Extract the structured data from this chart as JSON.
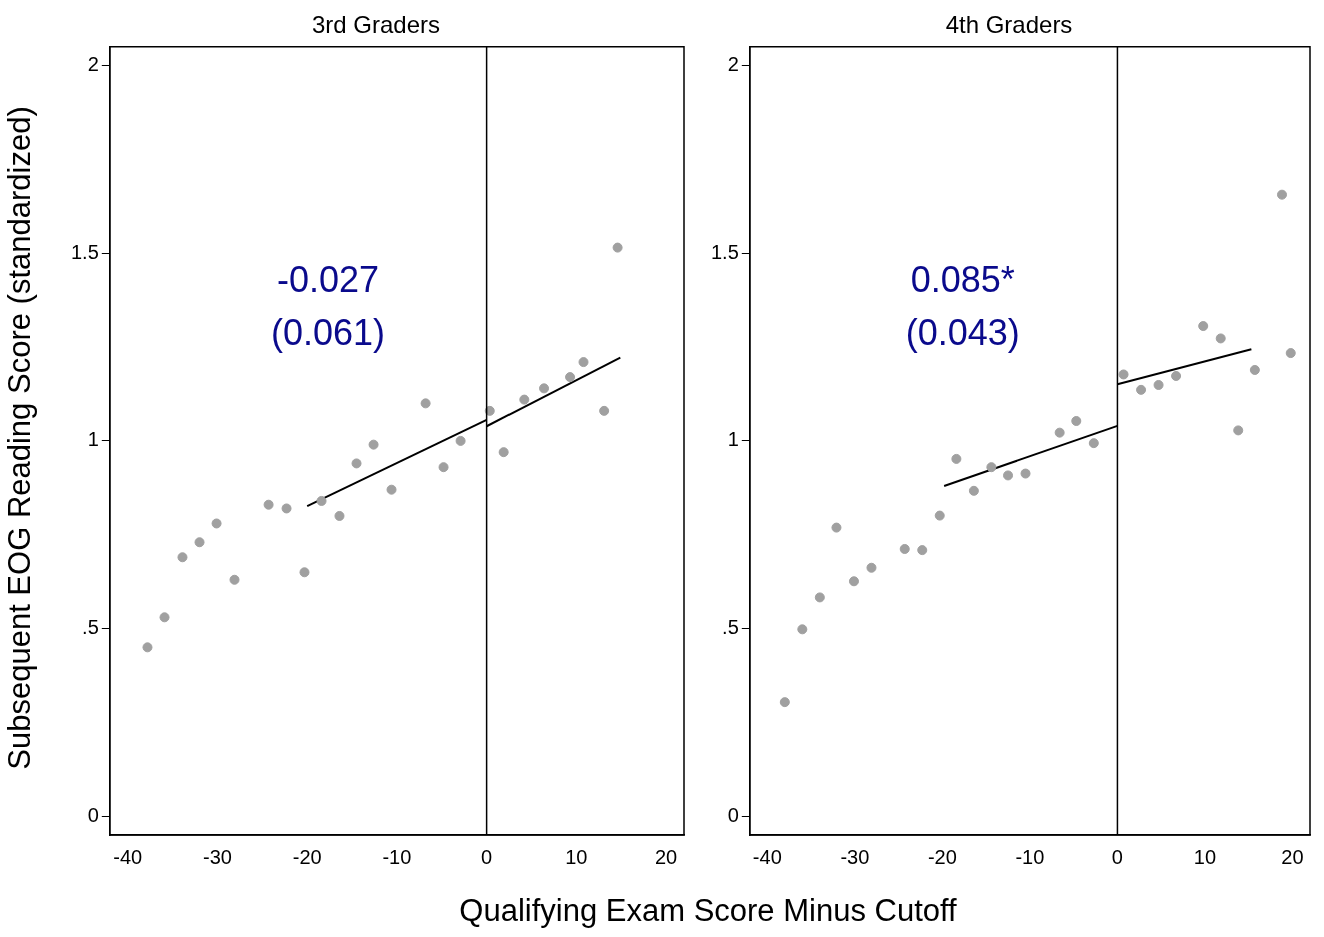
{
  "chart_data": [
    {
      "type": "scatter",
      "title": "3rd Graders",
      "xlabel": "Qualifying Exam Score Minus Cutoff",
      "ylabel": "Subsequent EOG Reading Score (standardized)",
      "xlim": [
        -42,
        22
      ],
      "ylim": [
        -0.05,
        2.05
      ],
      "xticks": [
        -40,
        -30,
        -20,
        -10,
        0,
        10,
        20
      ],
      "yticks": [
        0,
        {
          "value": 0.5,
          "label": ".5"
        },
        1,
        1.5,
        2
      ],
      "grid": false,
      "legend": false,
      "marker": "circle",
      "annotations": [
        "-0.027",
        "(0.061)"
      ],
      "ref_lines": [
        {
          "axis": "x",
          "value": 0,
          "color": "#000000"
        }
      ],
      "series": [
        {
          "color": "#a0a0a0",
          "x": [
            -37.8,
            -35.9,
            -33.9,
            -32.0,
            -30.1,
            -28.1,
            -24.3,
            -22.3,
            -20.3,
            -18.4,
            -16.4,
            -14.5,
            -12.6,
            -10.6,
            -6.8,
            -4.8,
            -2.9,
            0.35,
            1.9,
            4.2,
            6.4,
            9.3,
            10.8,
            13.1,
            14.6
          ],
          "values": [
            0.45,
            0.53,
            0.69,
            0.73,
            0.78,
            0.63,
            0.83,
            0.82,
            0.65,
            0.84,
            0.8,
            0.94,
            0.99,
            0.87,
            1.1,
            0.93,
            1.0,
            1.08,
            0.97,
            1.11,
            1.14,
            1.17,
            1.21,
            1.08,
            1.515
          ]
        },
        {
          "type": "line",
          "marker": "none",
          "color": "#000000",
          "x": [
            -20,
            0
          ],
          "values": [
            0.826,
            1.056
          ]
        },
        {
          "type": "line",
          "marker": "none",
          "color": "#000000",
          "x": [
            0,
            14.9
          ],
          "values": [
            1.039,
            1.222
          ]
        }
      ]
    },
    {
      "type": "scatter",
      "title": "4th Graders",
      "xlim": [
        -42,
        22
      ],
      "ylim": [
        -0.05,
        2.05
      ],
      "xticks": [
        -40,
        -30,
        -20,
        -10,
        0,
        10,
        20
      ],
      "yticks": [
        0,
        {
          "value": 0.5,
          "label": ".5"
        },
        1,
        1.5,
        2
      ],
      "grid": false,
      "legend": false,
      "marker": "circle",
      "annotations": [
        "0.085*",
        "(0.043)"
      ],
      "ref_lines": [
        {
          "axis": "x",
          "value": 0,
          "color": "#000000"
        }
      ],
      "series": [
        {
          "color": "#a0a0a0",
          "x": [
            -38.0,
            -36.0,
            -34.0,
            -32.1,
            -30.1,
            -28.1,
            -24.3,
            -22.3,
            -20.3,
            -18.4,
            -16.4,
            -14.4,
            -12.5,
            -10.5,
            -6.6,
            -4.7,
            -2.7,
            0.7,
            2.7,
            4.7,
            6.7,
            9.8,
            11.8,
            13.8,
            15.7,
            18.8,
            19.8
          ],
          "values": [
            0.304,
            0.498,
            0.583,
            0.769,
            0.626,
            0.662,
            0.712,
            0.709,
            0.801,
            0.952,
            0.867,
            0.93,
            0.908,
            0.913,
            1.022,
            1.053,
            0.994,
            1.177,
            1.136,
            1.149,
            1.173,
            1.306,
            1.273,
            1.028,
            1.189,
            1.656,
            1.234
          ]
        },
        {
          "type": "line",
          "marker": "none",
          "color": "#000000",
          "x": [
            -19.8,
            0
          ],
          "values": [
            0.88,
            1.04
          ]
        },
        {
          "type": "line",
          "marker": "none",
          "color": "#000000",
          "x": [
            0,
            15.3
          ],
          "values": [
            1.151,
            1.244
          ]
        }
      ]
    }
  ]
}
